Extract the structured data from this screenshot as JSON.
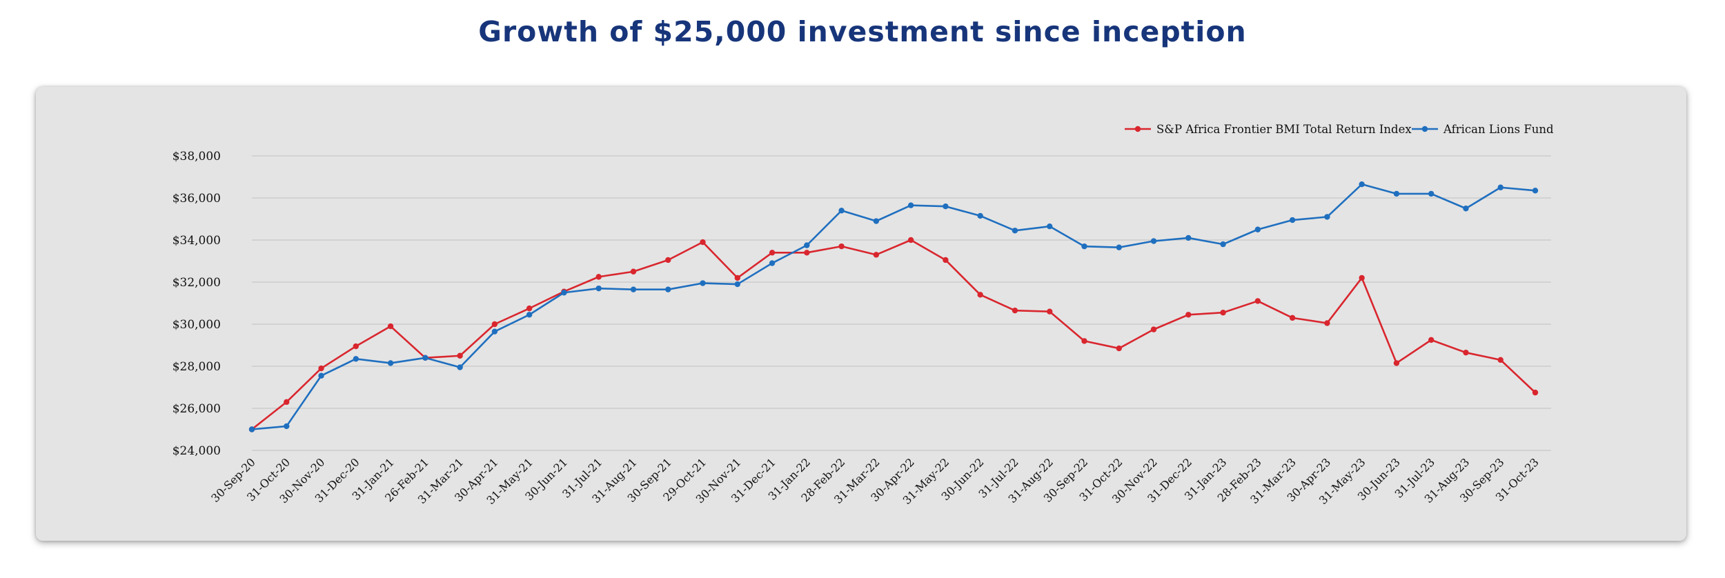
{
  "title": "Growth of $25,000 investment since inception",
  "colors": {
    "title": "#17357a",
    "sp_series": "#d9262e",
    "alf_series": "#1f6fbf",
    "panel": "#e4e4e4",
    "grid": "#c8c8c8"
  },
  "chart_data": {
    "type": "line",
    "title": "Growth of $25,000 investment since inception",
    "xlabel": "",
    "ylabel": "",
    "ylim": [
      24000,
      38000
    ],
    "yticks": [
      "$24,000",
      "$26,000",
      "$28,000",
      "$30,000",
      "$32,000",
      "$34,000",
      "$36,000",
      "$38,000"
    ],
    "ytick_values": [
      24000,
      26000,
      28000,
      30000,
      32000,
      34000,
      36000,
      38000
    ],
    "grid": "horizontal",
    "legend_position": "top-right",
    "x": [
      "30-Sep-20",
      "31-Oct-20",
      "30-Nov-20",
      "31-Dec-20",
      "31-Jan-21",
      "26-Feb-21",
      "31-Mar-21",
      "30-Apr-21",
      "31-May-21",
      "30-Jun-21",
      "31-Jul-21",
      "31-Aug-21",
      "30-Sep-21",
      "29-Oct-21",
      "30-Nov-21",
      "31-Dec-21",
      "31-Jan-22",
      "28-Feb-22",
      "31-Mar-22",
      "30-Apr-22",
      "31-May-22",
      "30-Jun-22",
      "31-Jul-22",
      "31-Aug-22",
      "30-Sep-22",
      "31-Oct-22",
      "30-Nov-22",
      "31-Dec-22",
      "31-Jan-23",
      "28-Feb-23",
      "31-Mar-23",
      "30-Apr-23",
      "31-May-23",
      "30-Jun-23",
      "31-Jul-23",
      "31-Aug-23",
      "30-Sep-23",
      "31-Oct-23"
    ],
    "series": [
      {
        "name": "S&P Africa Frontier BMI Total Return Index",
        "color": "#d9262e",
        "values": [
          25000,
          26300,
          27900,
          28950,
          29900,
          28400,
          28500,
          30000,
          30750,
          31550,
          32250,
          32500,
          33050,
          33900,
          32200,
          33400,
          33400,
          33700,
          33300,
          34000,
          33050,
          31400,
          30650,
          30600,
          29200,
          28850,
          29750,
          30450,
          30550,
          31100,
          30300,
          30050,
          32200,
          28150,
          29250,
          28650,
          28300,
          26750
        ]
      },
      {
        "name": "African Lions Fund",
        "color": "#1f6fbf",
        "values": [
          25000,
          25150,
          27550,
          28350,
          28150,
          28400,
          27950,
          29650,
          30450,
          31500,
          31700,
          31650,
          31650,
          31950,
          31900,
          32900,
          33750,
          35400,
          34900,
          35650,
          35600,
          35150,
          34450,
          34650,
          33700,
          33650,
          33950,
          34100,
          33800,
          34500,
          34950,
          35100,
          36650,
          36200,
          36200,
          35500,
          36500,
          36350
        ]
      }
    ]
  }
}
